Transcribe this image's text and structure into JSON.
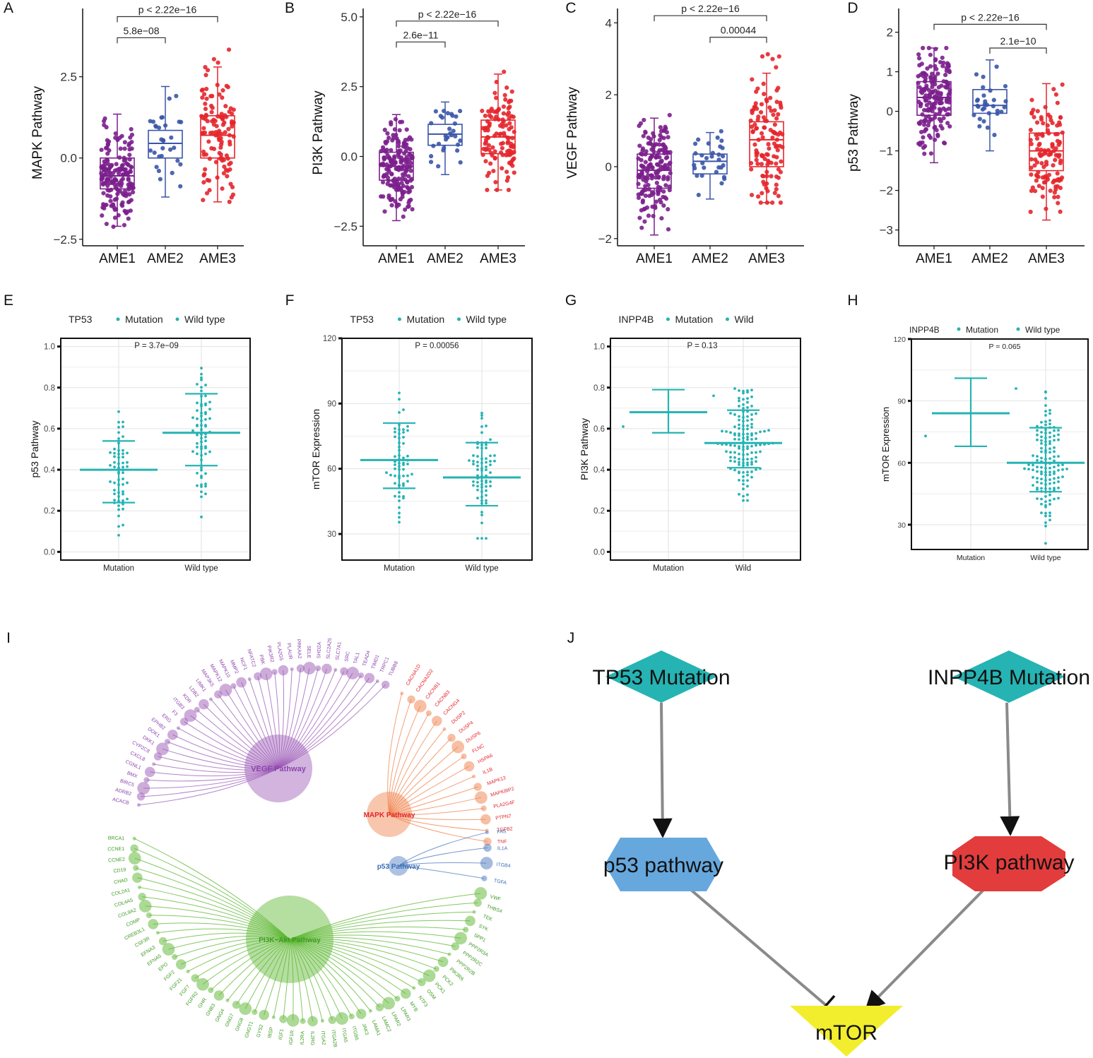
{
  "figure": {
    "colors": {
      "ame1": "#7b1f8c",
      "ame2": "#3a55a8",
      "ame3": "#e4262c",
      "teal": "#26b3b3",
      "vegf": "#9b59b6",
      "mapk": "#f0804a",
      "p53": "#4a78c0",
      "pi3k": "#5ab52e",
      "hexBlue": "#66a8dd",
      "octRed": "#e23c3c",
      "yellow": "#f2ee2e",
      "edge": "#8a8a8a"
    }
  },
  "chart_data": [
    {
      "panel": "A",
      "type": "boxplot",
      "ylabel": "MAPK Pathway",
      "categories": [
        "AME1",
        "AME2",
        "AME3"
      ],
      "ylim": [
        -2.7,
        4.6
      ],
      "yticks": [
        -2.5,
        0,
        2.5
      ],
      "ytick_labels": [
        "−2.5",
        "0.0",
        "2.5"
      ],
      "boxes": [
        {
          "q1": -0.95,
          "median": -0.55,
          "q3": 0.0,
          "min": -2.1,
          "max": 1.35,
          "n": 180,
          "lo": -2.5,
          "hi": 2.45
        },
        {
          "q1": 0.0,
          "median": 0.45,
          "q3": 0.85,
          "min": -1.2,
          "max": 2.2,
          "n": 30,
          "lo": -1.2,
          "hi": 2.2
        },
        {
          "q1": 0.0,
          "median": 0.7,
          "q3": 1.3,
          "min": -1.35,
          "max": 2.8,
          "n": 120,
          "lo": -1.35,
          "hi": 3.4
        }
      ],
      "comparisons": [
        {
          "from": 0,
          "to": 1,
          "label": "5.8e−08",
          "y": 3.7
        },
        {
          "from": 0,
          "to": 2,
          "label": "p < 2.22e−16",
          "y": 4.35
        }
      ]
    },
    {
      "panel": "B",
      "type": "boxplot",
      "ylabel": "PI3K Pathway",
      "categories": [
        "AME1",
        "AME2",
        "AME3"
      ],
      "ylim": [
        -3.2,
        5.3
      ],
      "yticks": [
        -2.5,
        0,
        2.5,
        5
      ],
      "ytick_labels": [
        "−2.5",
        "0.0",
        "2.5",
        "5.0"
      ],
      "boxes": [
        {
          "q1": -0.85,
          "median": -0.35,
          "q3": 0.15,
          "min": -2.3,
          "max": 1.5,
          "n": 180,
          "lo": -2.9,
          "hi": 1.55
        },
        {
          "q1": 0.4,
          "median": 0.8,
          "q3": 1.15,
          "min": -0.65,
          "max": 1.95,
          "n": 30,
          "lo": -0.65,
          "hi": 1.95
        },
        {
          "q1": 0.1,
          "median": 0.7,
          "q3": 1.3,
          "min": -1.2,
          "max": 2.95,
          "n": 120,
          "lo": -1.2,
          "hi": 3.75
        }
      ],
      "comparisons": [
        {
          "from": 0,
          "to": 1,
          "label": "2.6e−11",
          "y": 4.1
        },
        {
          "from": 0,
          "to": 2,
          "label": "p < 2.22e−16",
          "y": 4.85
        }
      ]
    },
    {
      "panel": "C",
      "type": "boxplot",
      "ylabel": "VEGF Pathway",
      "categories": [
        "AME1",
        "AME2",
        "AME3"
      ],
      "ylim": [
        -2.2,
        4.4
      ],
      "yticks": [
        -2,
        0,
        2,
        4
      ],
      "ytick_labels": [
        "−2",
        "0",
        "2",
        "4"
      ],
      "boxes": [
        {
          "q1": -0.6,
          "median": -0.1,
          "q3": 0.35,
          "min": -1.9,
          "max": 1.35,
          "n": 180,
          "lo": -1.9,
          "hi": 1.95
        },
        {
          "q1": -0.2,
          "median": 0.15,
          "q3": 0.35,
          "min": -0.9,
          "max": 0.95,
          "n": 30,
          "lo": -0.9,
          "hi": 1.95
        },
        {
          "q1": 0.0,
          "median": 0.75,
          "q3": 1.25,
          "min": -1.0,
          "max": 2.6,
          "n": 120,
          "lo": -1.0,
          "hi": 3.5
        }
      ],
      "comparisons": [
        {
          "from": 1,
          "to": 2,
          "label": "0.00044",
          "y": 3.6
        },
        {
          "from": 0,
          "to": 2,
          "label": "p < 2.22e−16",
          "y": 4.2
        }
      ]
    },
    {
      "panel": "D",
      "type": "boxplot",
      "ylabel": "p53 Pathway",
      "categories": [
        "AME1",
        "AME2",
        "AME3"
      ],
      "ylim": [
        -3.4,
        2.6
      ],
      "yticks": [
        -3,
        -2,
        -1,
        0,
        1,
        2
      ],
      "ytick_labels": [
        "−3",
        "−2",
        "−1",
        "0",
        "1",
        "2"
      ],
      "boxes": [
        {
          "q1": -0.1,
          "median": 0.35,
          "q3": 0.75,
          "min": -1.3,
          "max": 1.6,
          "n": 180,
          "lo": -2.2,
          "hi": 1.6
        },
        {
          "q1": -0.05,
          "median": 0.15,
          "q3": 0.55,
          "min": -1.0,
          "max": 1.3,
          "n": 30,
          "lo": -1.1,
          "hi": 1.6
        },
        {
          "q1": -1.5,
          "median": -1.0,
          "q3": -0.55,
          "min": -2.75,
          "max": 0.7,
          "n": 120,
          "lo": -3.15,
          "hi": 1.15
        }
      ],
      "comparisons": [
        {
          "from": 1,
          "to": 2,
          "label": "2.1e−10",
          "y": 1.6
        },
        {
          "from": 0,
          "to": 2,
          "label": "p < 2.22e−16",
          "y": 2.2
        }
      ]
    },
    {
      "panel": "E",
      "type": "beeswarm",
      "legend_title": "TP53",
      "legend": [
        "Mutation",
        "Wild type"
      ],
      "ylabel": "p53 Pathway",
      "categories": [
        "Mutation",
        "Wild type"
      ],
      "pvalue": "P = 3.7e−09",
      "ylim": [
        -0.04,
        1.04
      ],
      "yticks": [
        0,
        0.2,
        0.4,
        0.6,
        0.8,
        1.0
      ],
      "ytick_labels": [
        "0.0",
        "0.2",
        "0.4",
        "0.6",
        "0.8",
        "1.0"
      ],
      "groups": [
        {
          "mean": 0.4,
          "sd_lo": 0.24,
          "sd_hi": 0.54,
          "n": 60,
          "lo": 0.0,
          "hi": 0.7
        },
        {
          "mean": 0.58,
          "sd_lo": 0.42,
          "sd_hi": 0.77,
          "n": 70,
          "lo": 0.17,
          "hi": 1.0
        }
      ]
    },
    {
      "panel": "F",
      "type": "beeswarm",
      "legend_title": "TP53",
      "legend": [
        "Mutation",
        "Wild type"
      ],
      "ylabel": "mTOR Expression",
      "categories": [
        "Mutation",
        "Wild type"
      ],
      "pvalue": "P = 0.00056",
      "ylim": [
        18,
        120
      ],
      "yticks": [
        30,
        60,
        90,
        120
      ],
      "ytick_labels": [
        "30",
        "60",
        "90",
        "120"
      ],
      "groups": [
        {
          "mean": 64,
          "sd_lo": 51,
          "sd_hi": 81,
          "n": 60,
          "lo": 21,
          "hi": 99
        },
        {
          "mean": 56,
          "sd_lo": 43,
          "sd_hi": 72,
          "n": 70,
          "lo": 28,
          "hi": 116
        }
      ]
    },
    {
      "panel": "G",
      "type": "beeswarm",
      "legend_title": "INPP4B",
      "legend": [
        "Mutation",
        "Wild"
      ],
      "ylabel": "PI3K Pathway",
      "categories": [
        "Mutation",
        "Wild"
      ],
      "pvalue": "P = 0.13",
      "ylim": [
        -0.04,
        1.04
      ],
      "yticks": [
        0,
        0.2,
        0.4,
        0.6,
        0.8,
        1.0
      ],
      "ytick_labels": [
        "0.0",
        "0.2",
        "0.4",
        "0.6",
        "0.8",
        "1.0"
      ],
      "groups": [
        {
          "mean": 0.68,
          "sd_lo": 0.58,
          "sd_hi": 0.79,
          "n": 2,
          "lo": 0.61,
          "hi": 0.76
        },
        {
          "mean": 0.53,
          "sd_lo": 0.41,
          "sd_hi": 0.69,
          "n": 130,
          "lo": 0.25,
          "hi": 1.0
        }
      ]
    },
    {
      "panel": "H",
      "type": "beeswarm",
      "legend_title": "INPP4B",
      "legend": [
        "Mutation",
        "Wild type"
      ],
      "ylabel": "mTOR Expression",
      "categories": [
        "Mutation",
        "Wild type"
      ],
      "pvalue": "P = 0.065",
      "ylim": [
        18,
        120
      ],
      "yticks": [
        30,
        60,
        90,
        120
      ],
      "ytick_labels": [
        "30",
        "60",
        "90",
        "120"
      ],
      "groups": [
        {
          "mean": 84,
          "sd_lo": 68,
          "sd_hi": 101,
          "n": 2,
          "lo": 73,
          "hi": 96
        },
        {
          "mean": 60,
          "sd_lo": 46,
          "sd_hi": 77,
          "n": 130,
          "lo": 21,
          "hi": 116
        }
      ]
    }
  ],
  "panel_labels": [
    "A",
    "B",
    "C",
    "D",
    "E",
    "F",
    "G",
    "H",
    "I",
    "J"
  ],
  "network": {
    "hubs": [
      {
        "key": "vegf",
        "label": "VEGF Pathway"
      },
      {
        "key": "mapk",
        "label": "MAPK Pathway"
      },
      {
        "key": "p53",
        "label": "p53 Pathway"
      },
      {
        "key": "pi3k",
        "label": "PI3K−Akt Pathway"
      }
    ],
    "genes": {
      "vegf": [
        "ACACB",
        "ADRB2",
        "BIRC5",
        "BMX",
        "CGNL1",
        "CXCL8",
        "CYP2C8",
        "DKK1",
        "DOK1",
        "EPHB2",
        "ERG",
        "F3",
        "ITGB3",
        "KDR",
        "LDB2",
        "LIMK1",
        "MAP3K5",
        "MAPK12",
        "MAPK10",
        "MMP2",
        "NCF1",
        "NFATC2",
        "PBK",
        "PIK3R2",
        "PLA2G5",
        "PLAUR",
        "PRKAA2",
        "SELE",
        "SHD2A",
        "SLC2A25",
        "SLC7A1",
        "SRC",
        "TAL1",
        "TEAD4",
        "TIMD1",
        "TRPC1",
        "TUBB8"
      ],
      "mapk": [
        "CACNA1D",
        "CACNA2D2",
        "CACNB1",
        "CACNB3",
        "CACNG4",
        "DUSP2",
        "DUSP4",
        "DUSP6",
        "FLNC",
        "HSPA6",
        "IL1B",
        "MAPK13",
        "MAPK8IP2",
        "PLA2G4F",
        "PTPN7",
        "TGFB2",
        "TNF"
      ],
      "p53": [
        "FAS",
        "IL1A",
        "ITGB4",
        "TGFA"
      ],
      "pi3k": [
        "BRCA1",
        "CCNE1",
        "CCNE2",
        "CD19",
        "CHAD",
        "COL2A1",
        "COL4A5",
        "COL9A2",
        "COMP",
        "CREB3L1",
        "CSF3R",
        "EFNA3",
        "EFNA5",
        "EPO",
        "FGF2",
        "FGF21",
        "FGF7",
        "FGFR2",
        "GHR",
        "GNB3",
        "GNG4",
        "GNG7",
        "GNG8",
        "GNGT1",
        "GYS2",
        "IBSP",
        "IGF1",
        "IGF1R",
        "IL2RA",
        "IL2RG",
        "ITGA2",
        "ITGA2B",
        "ITGA5",
        "ITGB6",
        "JAK3",
        "LAMA1",
        "LAMC2",
        "LPAR2",
        "LPAR3",
        "MYB",
        "NTF3",
        "OSM",
        "PCK1",
        "PCK2",
        "PIK3R6",
        "PPP2R2B",
        "PPP2R2C",
        "PPP2R3A",
        "SPP1",
        "SYK",
        "TEK",
        "THBS4",
        "VWF"
      ]
    }
  },
  "schematic": {
    "nodes": [
      {
        "key": "tp53",
        "label": "TP53 Mutation"
      },
      {
        "key": "inpp4b",
        "label": "INPP4B Mutation"
      },
      {
        "key": "p53pw",
        "label": "p53 pathway"
      },
      {
        "key": "pi3kpw",
        "label": "PI3K pathway"
      },
      {
        "key": "mtor",
        "label": "mTOR"
      }
    ],
    "edges": [
      {
        "from": "tp53",
        "to": "p53pw",
        "kind": "activation"
      },
      {
        "from": "inpp4b",
        "to": "pi3kpw",
        "kind": "activation"
      },
      {
        "from": "p53pw",
        "to": "mtor",
        "kind": "inhibition"
      },
      {
        "from": "pi3kpw",
        "to": "mtor",
        "kind": "activation"
      }
    ]
  }
}
